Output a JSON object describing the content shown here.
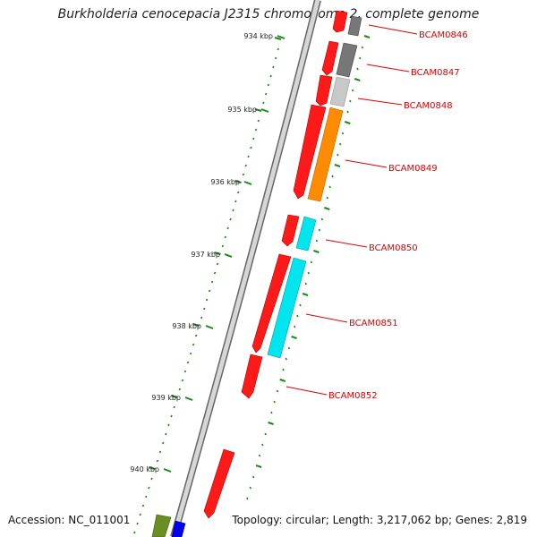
{
  "title": "Burkholderia cenocepacia J2315 chromosome 2, complete genome",
  "accession": "Accession: NC_011001",
  "summary": "Topology: circular; Length: 3,217,062 bp; Genes: 2,819",
  "ticks": [
    {
      "label": "934 kbp"
    },
    {
      "label": "935 kbp"
    },
    {
      "label": "936 kbp"
    },
    {
      "label": "937 kbp"
    },
    {
      "label": "938 kbp"
    },
    {
      "label": "939 kbp"
    },
    {
      "label": "940 kbp"
    }
  ],
  "genes": [
    {
      "label": "BCAM0846",
      "cog_color": "#707070"
    },
    {
      "label": "BCAM0847",
      "cog_color": "#707070"
    },
    {
      "label": "BCAM0848",
      "cog_color": "#c8c8c8"
    },
    {
      "label": "BCAM0849",
      "cog_color": "#ff8c00"
    },
    {
      "label": "BCAM0850",
      "cog_color": "#00e5ee"
    },
    {
      "label": "BCAM0851",
      "cog_color": "#00e5ee"
    },
    {
      "label": "BCAM0852",
      "cog_color": "#ff0000"
    }
  ],
  "colors": {
    "cds": "#ff0000",
    "backbone": "#888888",
    "tick": "#1a8a1a",
    "label": "#e00000"
  }
}
